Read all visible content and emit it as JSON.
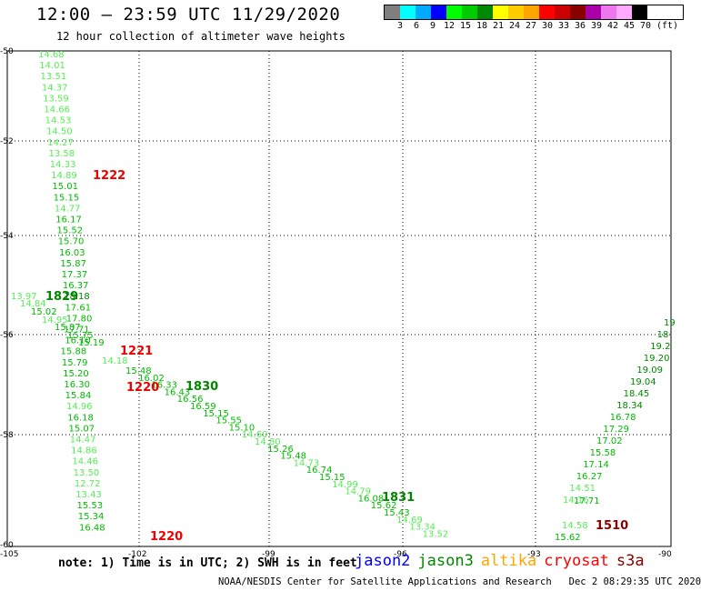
{
  "header": {
    "title": "12:00 – 23:59 UTC 11/29/2020",
    "subtitle": "12 hour collection of altimeter wave heights"
  },
  "legend": {
    "colors": [
      "#7f7f7f",
      "#00ffff",
      "#00aaff",
      "#0000ff",
      "#00ff00",
      "#00cc00",
      "#008800",
      "#ffff00",
      "#ffcc00",
      "#ffa500",
      "#ff0000",
      "#cc0000",
      "#880000",
      "#aa00aa",
      "#ee77ee",
      "#ffaaff",
      "#000000"
    ],
    "labels": [
      "3",
      "6",
      "9",
      "12",
      "15",
      "18",
      "21",
      "24",
      "27",
      "30",
      "33",
      "36",
      "39",
      "42",
      "45",
      "70"
    ],
    "unit": "(ft)"
  },
  "map": {
    "lat_labels": [
      "-50",
      "-52",
      "-54",
      "-56",
      "-58",
      "-60"
    ],
    "lon_labels": [
      "-105",
      "-102",
      "-99",
      "-96",
      "-93",
      "-90"
    ]
  },
  "tracks": {
    "left_column": [
      "14.68",
      "14.01",
      "13.51",
      "14.37",
      "13.59",
      "14.66",
      "14.53",
      "14.50",
      "14.27",
      "13.58",
      "14.33",
      "14.89",
      "15.01",
      "15.15",
      "14.77",
      "16.17",
      "15.52",
      "15.70",
      "16.03",
      "15.87",
      "17.37",
      "16.37",
      "18.18",
      "17.61",
      "17.80",
      "17.71",
      "16.10",
      "15.88",
      "15.79",
      "15.20",
      "16.30",
      "15.84",
      "14.96",
      "16.18",
      "15.07",
      "14.47",
      "14.86",
      "14.46",
      "13.50",
      "12.72",
      "13.43",
      "15.53",
      "15.34",
      "16.48"
    ],
    "left_side": [
      "13.97",
      "14.84",
      "15.02",
      "14.95",
      "15.87",
      "15.75",
      "15.19",
      "14.18"
    ],
    "diagonal": [
      "15.48",
      "16.02",
      "16.33",
      "16.43",
      "16.56",
      "16.59",
      "15.15",
      "15.55",
      "15.10",
      "14.60",
      "14.80",
      "15.26",
      "15.48",
      "14.73",
      "16.74",
      "15.15",
      "14.99",
      "14.79",
      "16.08",
      "15.62",
      "15.43",
      "14.69",
      "13.34",
      "13.52"
    ],
    "right": [
      "19",
      "18",
      "19.2",
      "19.20",
      "19.09",
      "19.04",
      "18.45",
      "18.34",
      "16.78",
      "17.29",
      "17.02",
      "15.58",
      "17.14",
      "16.27",
      "14.51",
      "14.16",
      "14.58",
      "15.62",
      "17.71"
    ],
    "times": [
      "1222",
      "1829",
      "1221",
      "1220",
      "1830",
      "1831",
      "1510",
      "1220"
    ]
  },
  "footer": {
    "note": "note: 1) Time is in UTC; 2) SWH is in feet",
    "satellites": [
      {
        "name": "jason2",
        "color": "#0000ff"
      },
      {
        "name": "jason3",
        "color": "#008800"
      },
      {
        "name": "altika",
        "color": "#ffa500"
      },
      {
        "name": "cryosat",
        "color": "#ff0000"
      },
      {
        "name": "s3a",
        "color": "#880000"
      }
    ],
    "credit": "NOAA/NESDIS Center for Satellite Applications and Research",
    "timestamp": "Dec  2 08:29:35 UTC 2020"
  }
}
